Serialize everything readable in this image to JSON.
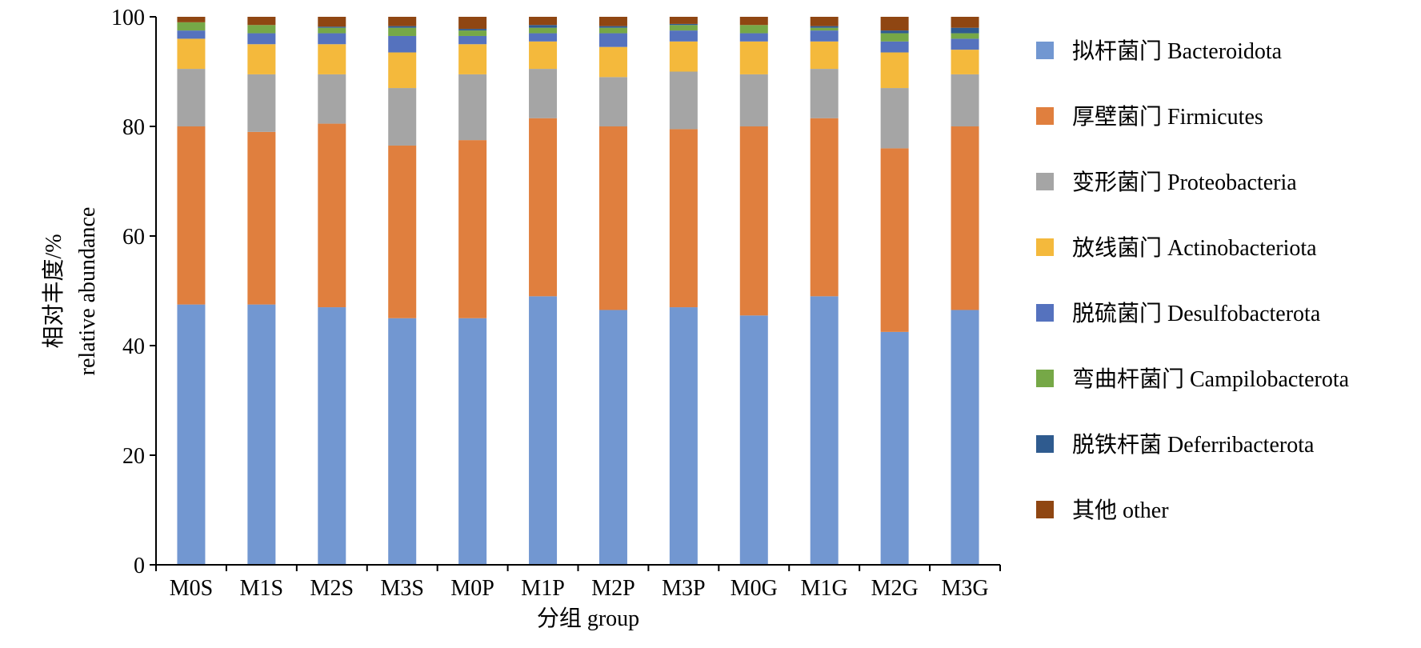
{
  "chart_data": {
    "type": "bar",
    "stacked": true,
    "ylabel": [
      "相对丰度/%",
      "relative abundance"
    ],
    "xlabel": "分组 group",
    "ylim": [
      0,
      100
    ],
    "yticks": [
      0,
      20,
      40,
      60,
      80,
      100
    ],
    "grid": false,
    "legend_position": "right",
    "categories": [
      "M0S",
      "M1S",
      "M2S",
      "M3S",
      "M0P",
      "M1P",
      "M2P",
      "M3P",
      "M0G",
      "M1G",
      "M2G",
      "M3G"
    ],
    "series": [
      {
        "name": "拟杆菌门 Bacteroidota",
        "color": "#7297D1",
        "values": [
          47.5,
          47.5,
          47.0,
          45.0,
          45.0,
          49.0,
          46.5,
          47.0,
          45.5,
          49.0,
          42.5,
          46.5
        ]
      },
      {
        "name": "厚壁菌门 Firmicutes",
        "color": "#E07F3E",
        "values": [
          32.5,
          31.5,
          33.5,
          31.5,
          32.5,
          32.5,
          33.5,
          32.5,
          34.5,
          32.5,
          33.5,
          33.5
        ]
      },
      {
        "name": "变形菌门 Proteobacteria",
        "color": "#A5A5A5",
        "values": [
          10.5,
          10.5,
          9.0,
          10.5,
          12.0,
          9.0,
          9.0,
          10.5,
          9.5,
          9.0,
          11.0,
          9.5
        ]
      },
      {
        "name": "放线菌门 Actinobacteriota",
        "color": "#F4B93C",
        "values": [
          5.5,
          5.5,
          5.5,
          6.5,
          5.5,
          5.0,
          5.5,
          5.5,
          6.0,
          5.0,
          6.5,
          4.5
        ]
      },
      {
        "name": "脱硫菌门 Desulfobacterota",
        "color": "#5572BE",
        "values": [
          1.5,
          2.0,
          2.0,
          3.0,
          1.5,
          1.5,
          2.5,
          2.0,
          1.5,
          2.0,
          2.0,
          2.0
        ]
      },
      {
        "name": "弯曲杆菌门 Campilobacterota",
        "color": "#76A847",
        "values": [
          1.5,
          1.5,
          1.0,
          1.5,
          1.0,
          1.0,
          1.0,
          1.0,
          1.5,
          0.5,
          1.5,
          1.0
        ]
      },
      {
        "name": "脱铁杆菌 Deferribacterota",
        "color": "#2F5B8F",
        "values": [
          0.0,
          0.0,
          0.2,
          0.3,
          0.3,
          0.5,
          0.3,
          0.2,
          0.0,
          0.3,
          0.5,
          1.0
        ]
      },
      {
        "name": "其他 other",
        "color": "#8F4612",
        "values": [
          1.0,
          1.5,
          1.8,
          1.7,
          2.2,
          1.5,
          1.7,
          1.3,
          1.5,
          1.7,
          2.5,
          2.0
        ]
      }
    ]
  }
}
